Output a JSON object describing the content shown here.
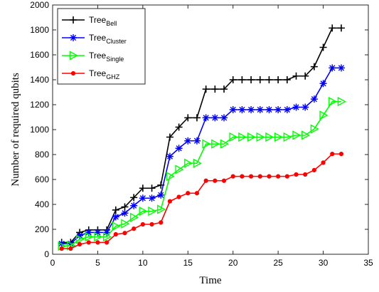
{
  "chart_data": {
    "type": "line",
    "xlabel": "Time",
    "ylabel": "Number of required qubits",
    "xlim": [
      0,
      35
    ],
    "ylim": [
      0,
      2000
    ],
    "xticks": [
      0,
      5,
      10,
      15,
      20,
      25,
      30,
      35
    ],
    "yticks": [
      0,
      200,
      400,
      600,
      800,
      1000,
      1200,
      1400,
      1600,
      1800,
      2000
    ],
    "grid": false,
    "legend_position": "top-left",
    "x": [
      1,
      2,
      3,
      4,
      5,
      6,
      7,
      8,
      9,
      10,
      11,
      12,
      13,
      14,
      15,
      16,
      17,
      18,
      19,
      20,
      21,
      22,
      23,
      24,
      25,
      26,
      27,
      28,
      29,
      30,
      31,
      32
    ],
    "series": [
      {
        "name": "Tree",
        "name_sub": "Bell",
        "color": "#000000",
        "marker": "plus",
        "values": [
          95,
          95,
          175,
          195,
          195,
          195,
          355,
          380,
          455,
          530,
          530,
          555,
          940,
          1020,
          1095,
          1095,
          1325,
          1325,
          1325,
          1400,
          1400,
          1400,
          1400,
          1400,
          1400,
          1400,
          1430,
          1430,
          1505,
          1660,
          1815,
          1815
        ]
      },
      {
        "name": "Tree",
        "name_sub": "Cluster",
        "color": "#0000ff",
        "marker": "asterisk",
        "values": [
          85,
          85,
          150,
          175,
          175,
          175,
          300,
          330,
          390,
          450,
          450,
          475,
          785,
          850,
          910,
          910,
          1095,
          1095,
          1095,
          1160,
          1160,
          1160,
          1160,
          1160,
          1160,
          1160,
          1180,
          1180,
          1245,
          1370,
          1495,
          1495
        ]
      },
      {
        "name": "Tree",
        "name_sub": "Single",
        "color": "#00ff00",
        "marker": "triangle-right",
        "values": [
          65,
          70,
          120,
          140,
          140,
          140,
          225,
          245,
          295,
          345,
          345,
          360,
          625,
          680,
          730,
          730,
          885,
          885,
          885,
          940,
          940,
          940,
          940,
          940,
          940,
          940,
          955,
          955,
          1005,
          1115,
          1225,
          1225
        ]
      },
      {
        "name": "Tree",
        "name_sub": "GHZ",
        "color": "#ff0000",
        "marker": "dot",
        "values": [
          45,
          45,
          80,
          95,
          95,
          95,
          160,
          170,
          205,
          240,
          240,
          255,
          425,
          460,
          490,
          490,
          590,
          590,
          590,
          625,
          625,
          625,
          625,
          625,
          625,
          625,
          640,
          640,
          675,
          735,
          805,
          805
        ]
      }
    ]
  }
}
